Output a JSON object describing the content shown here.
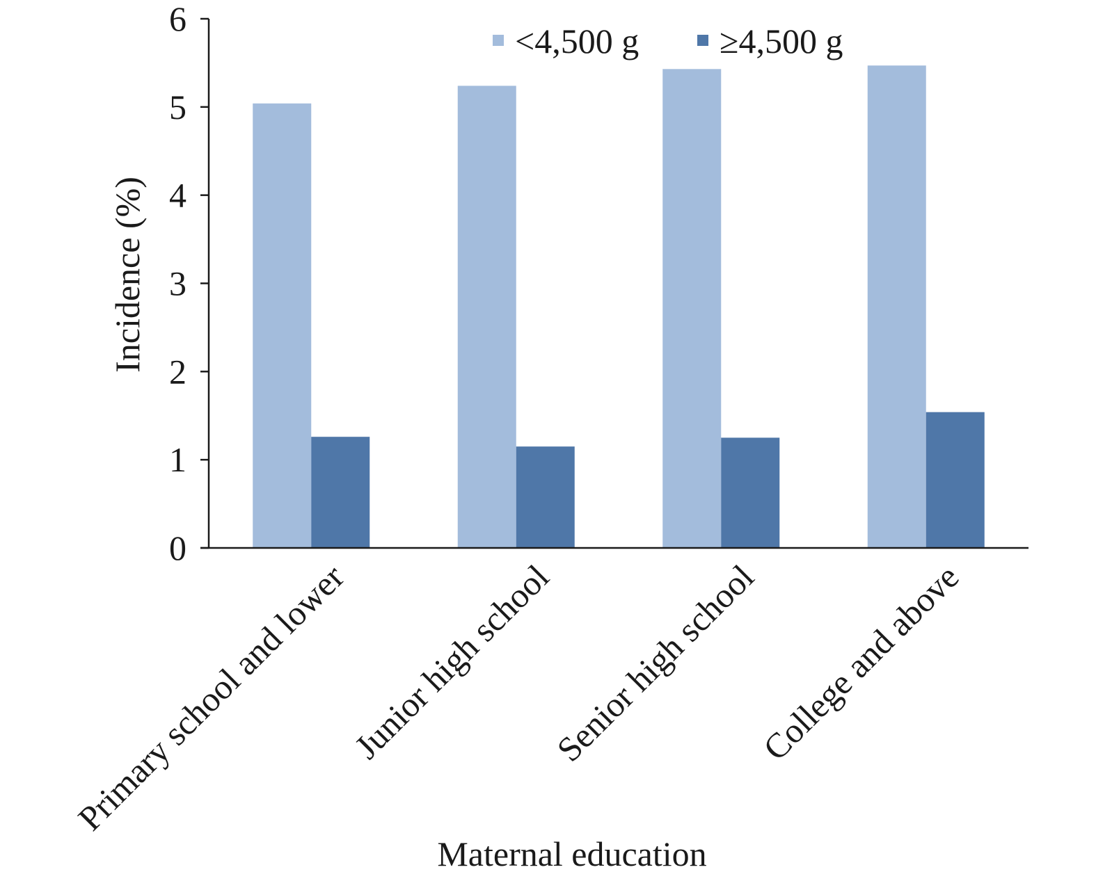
{
  "chart_data": {
    "type": "bar",
    "title": "",
    "xlabel": "Maternal education",
    "ylabel": "Incidence (%)",
    "categories": [
      "Primary school and lower",
      "Junior high school",
      "Senior high school",
      "College and above"
    ],
    "series": [
      {
        "name": "<4,500 g",
        "values": [
          5.04,
          5.24,
          5.43,
          5.47
        ],
        "color": "#a3bcdc"
      },
      {
        "name": "≥4,500 g",
        "values": [
          1.26,
          1.15,
          1.25,
          1.54
        ],
        "color": "#4f77a8"
      }
    ],
    "yticks": [
      "0",
      "1",
      "2",
      "3",
      "4",
      "5",
      "6"
    ],
    "ylim": [
      0,
      6
    ],
    "grid": false,
    "legend_position": "top-right"
  }
}
